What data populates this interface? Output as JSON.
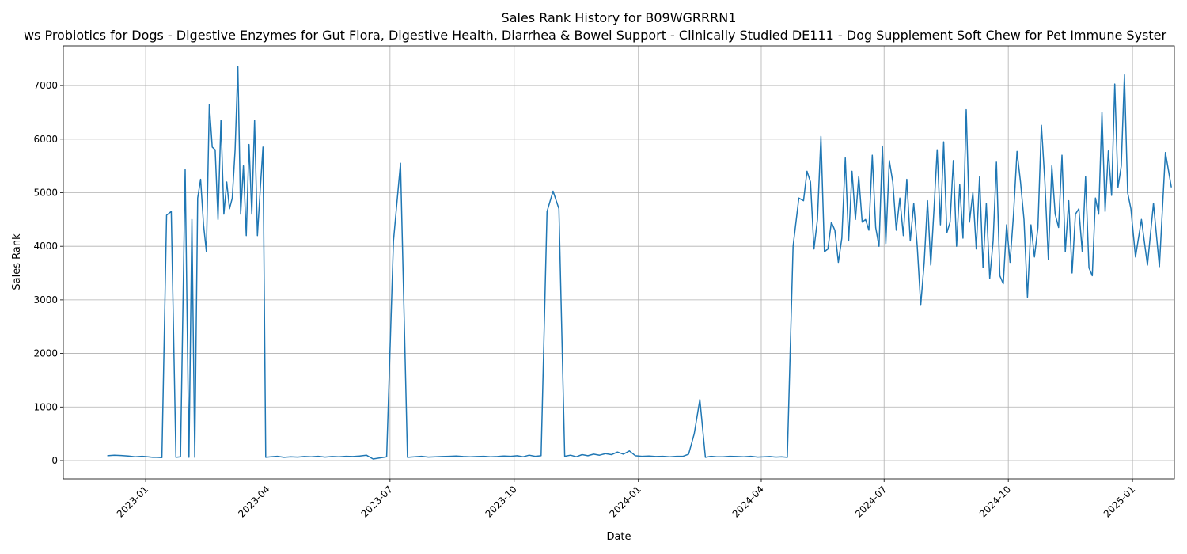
{
  "chart_data": {
    "type": "line",
    "title": "Sales Rank History for B09WGRRRN1",
    "subtitle": "ws Probiotics for Dogs - Digestive Enzymes for Gut Flora, Digestive Health, Diarrhea & Bowel Support - Clinically Studied DE111 - Dog Supplement Soft Chew for Pet Immune Syster",
    "x_label": "Date",
    "y_label": "Sales Rank",
    "color": "#1f77b4",
    "grid": true,
    "xlim": [
      "2022-11",
      "2025-02"
    ],
    "xticks": [
      "2023-01",
      "2023-04",
      "2023-07",
      "2023-10",
      "2024-01",
      "2024-04",
      "2024-07",
      "2024-10",
      "2025-01"
    ],
    "ylim": [
      -340,
      7740
    ],
    "yticks": [
      0,
      1000,
      2000,
      3000,
      4000,
      5000,
      6000,
      7000
    ],
    "x": [
      "2022-12",
      "2022-12",
      "2022-12",
      "2022-12",
      "2022-12",
      "2022-12",
      "2023-01",
      "2023-01",
      "2023-01",
      "2023-01",
      "2023-01",
      "2023-01",
      "2023-01",
      "2023-01",
      "2023-01",
      "2023-02",
      "2023-02",
      "2023-02",
      "2023-02",
      "2023-02",
      "2023-02",
      "2023-02",
      "2023-02",
      "2023-02",
      "2023-02",
      "2023-02",
      "2023-02",
      "2023-02",
      "2023-03",
      "2023-03",
      "2023-03",
      "2023-03",
      "2023-03",
      "2023-03",
      "2023-03",
      "2023-03",
      "2023-03",
      "2023-03",
      "2023-03",
      "2023-03",
      "2023-03",
      "2023-03",
      "2023-03",
      "2023-04",
      "2023-04",
      "2023-04",
      "2023-04",
      "2023-04",
      "2023-04",
      "2023-05",
      "2023-05",
      "2023-05",
      "2023-05",
      "2023-05",
      "2023-05",
      "2023-06",
      "2023-06",
      "2023-06",
      "2023-06",
      "2023-06",
      "2023-06",
      "2023-07",
      "2023-07",
      "2023-07",
      "2023-07",
      "2023-07",
      "2023-07",
      "2023-08",
      "2023-08",
      "2023-08",
      "2023-08",
      "2023-08",
      "2023-08",
      "2023-09",
      "2023-09",
      "2023-09",
      "2023-09",
      "2023-09",
      "2023-09",
      "2023-10",
      "2023-10",
      "2023-10",
      "2023-10",
      "2023-10",
      "2023-10",
      "2023-10",
      "2023-11",
      "2023-11",
      "2023-11",
      "2023-11",
      "2023-11",
      "2023-11",
      "2023-11",
      "2023-12",
      "2023-12",
      "2023-12",
      "2023-12",
      "2023-12",
      "2023-12",
      "2023-12",
      "2024-01",
      "2024-01",
      "2024-01",
      "2024-01",
      "2024-01",
      "2024-01",
      "2024-02",
      "2024-02",
      "2024-02",
      "2024-02",
      "2024-02",
      "2024-02",
      "2024-02",
      "2024-03",
      "2024-03",
      "2024-03",
      "2024-03",
      "2024-03",
      "2024-03",
      "2024-04",
      "2024-04",
      "2024-04",
      "2024-04",
      "2024-04",
      "2024-04",
      "2024-04",
      "2024-05",
      "2024-05",
      "2024-05",
      "2024-05",
      "2024-05",
      "2024-05",
      "2024-05",
      "2024-05",
      "2024-05",
      "2024-05",
      "2024-05",
      "2024-05",
      "2024-06",
      "2024-06",
      "2024-06",
      "2024-06",
      "2024-06",
      "2024-06",
      "2024-06",
      "2024-06",
      "2024-06",
      "2024-06",
      "2024-06",
      "2024-06",
      "2024-07",
      "2024-07",
      "2024-07",
      "2024-07",
      "2024-07",
      "2024-07",
      "2024-07",
      "2024-07",
      "2024-07",
      "2024-07",
      "2024-07",
      "2024-07",
      "2024-08",
      "2024-08",
      "2024-08",
      "2024-08",
      "2024-08",
      "2024-08",
      "2024-08",
      "2024-08",
      "2024-08",
      "2024-08",
      "2024-08",
      "2024-08",
      "2024-08",
      "2024-09",
      "2024-09",
      "2024-09",
      "2024-09",
      "2024-09",
      "2024-09",
      "2024-09",
      "2024-09",
      "2024-09",
      "2024-09",
      "2024-09",
      "2024-09",
      "2024-10",
      "2024-10",
      "2024-10",
      "2024-10",
      "2024-10",
      "2024-10",
      "2024-10",
      "2024-10",
      "2024-10",
      "2024-10",
      "2024-10",
      "2024-10",
      "2024-11",
      "2024-11",
      "2024-11",
      "2024-11",
      "2024-11",
      "2024-11",
      "2024-11",
      "2024-11",
      "2024-11",
      "2024-11",
      "2024-11",
      "2024-11",
      "2024-12",
      "2024-12",
      "2024-12",
      "2024-12",
      "2024-12",
      "2024-12",
      "2024-12",
      "2024-12",
      "2024-12",
      "2024-12",
      "2024-12",
      "2024-12",
      "2024-12",
      "2025-01",
      "2025-01",
      "2025-01",
      "2025-01",
      "2025-01",
      "2025-01",
      "2025-01"
    ],
    "values": [
      90,
      100,
      95,
      85,
      70,
      80,
      70,
      60,
      60,
      55,
      4580,
      4650,
      60,
      70,
      5430,
      60,
      4500,
      60,
      4900,
      5250,
      4400,
      3900,
      6650,
      5850,
      5800,
      4500,
      6350,
      4600,
      5200,
      4700,
      4900,
      5800,
      7350,
      4600,
      5500,
      4200,
      5900,
      4600,
      6350,
      4200,
      5050,
      5850,
      60,
      70,
      80,
      60,
      70,
      65,
      75,
      70,
      80,
      65,
      75,
      70,
      80,
      75,
      85,
      100,
      30,
      50,
      70,
      4100,
      5550,
      60,
      70,
      80,
      65,
      70,
      75,
      80,
      85,
      75,
      70,
      75,
      80,
      70,
      75,
      85,
      80,
      90,
      70,
      100,
      80,
      90,
      4650,
      5030,
      4700,
      80,
      100,
      70,
      110,
      90,
      120,
      100,
      130,
      110,
      160,
      120,
      180,
      90,
      80,
      85,
      75,
      80,
      70,
      80,
      80,
      120,
      500,
      1140,
      60,
      80,
      70,
      70,
      80,
      75,
      70,
      80,
      65,
      70,
      75,
      65,
      70,
      60,
      4000,
      4900,
      4850,
      5400,
      5200,
      3950,
      4500,
      6050,
      3900,
      3950,
      4450,
      4300,
      3700,
      4150,
      5650,
      4100,
      5400,
      4500,
      5300,
      4450,
      4500,
      4300,
      5700,
      4350,
      4000,
      5870,
      4050,
      5600,
      5200,
      4300,
      4900,
      4200,
      5250,
      4100,
      4800,
      4000,
      2900,
      3700,
      4850,
      3650,
      4700,
      5800,
      4400,
      5950,
      4250,
      4450,
      5600,
      4000,
      5150,
      4150,
      6550,
      4450,
      5000,
      3950,
      5300,
      3600,
      4800,
      3400,
      4100,
      5570,
      3450,
      3300,
      4400,
      3700,
      4600,
      5770,
      5200,
      4500,
      3050,
      4400,
      3800,
      4350,
      6260,
      5200,
      3750,
      5500,
      4600,
      4350,
      5700,
      3900,
      4850,
      3500,
      4600,
      4700,
      3900,
      5300,
      3600,
      3450,
      4900,
      4600,
      6500,
      4650,
      5780,
      4950,
      7030,
      5100,
      5500,
      7200,
      5000,
      4700,
      3800,
      4500,
      3650,
      4800,
      3620,
      5750,
      5100
    ]
  }
}
